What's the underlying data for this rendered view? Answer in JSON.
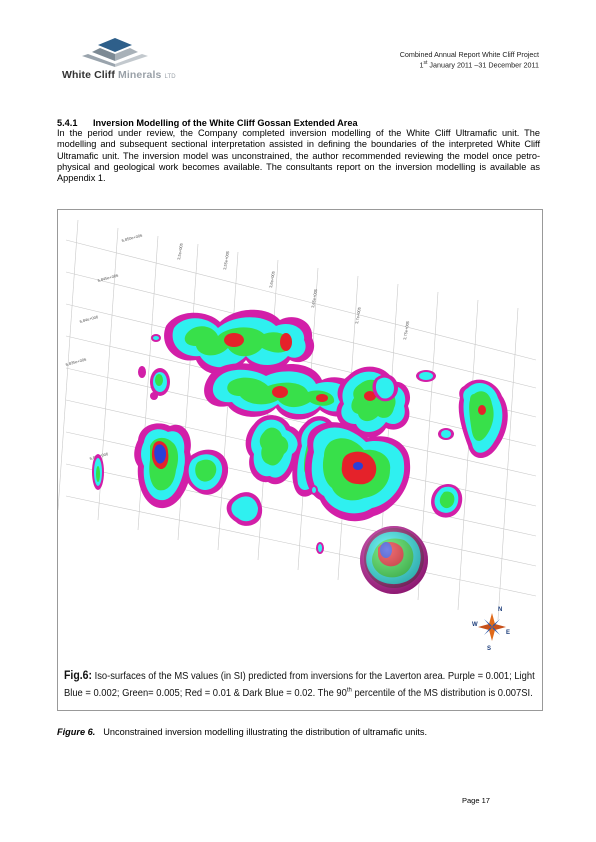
{
  "header": {
    "logo": {
      "name": "White Cliff",
      "name2": "Minerals",
      "suffix": "LTD",
      "icon": "white-cliff-logo-icon"
    },
    "project": "Combined Annual Report White Cliff Project",
    "period_pre": "1",
    "period_sup": "st",
    "period_post": " January 2011 –31 December 2011"
  },
  "section": {
    "number": "5.4.1",
    "title": "Inversion Modelling of the White Cliff Gossan Extended Area",
    "body": "In the period under review, the Company completed inversion modelling of the White Cliff Ultramafic unit. The modelling and subsequent sectional interpretation assisted in defining the boundaries of the interpreted White Cliff Ultramafic unit. The inversion model was unconstrained, the author recommended reviewing the model once petro-physical and geological work becomes available. The consultants report on the inversion modelling is available as Appendix 1."
  },
  "figure": {
    "colors": {
      "purple": "#d21fa8",
      "light_blue": "#2ff0f0",
      "green": "#38e04a",
      "red": "#e5222a",
      "dark_blue": "#2a3fd8"
    },
    "grid_labels": [
      "6,850e+006",
      "6,845e+006",
      "6,84e+006",
      "6,835e+006",
      "6,83e+006",
      "3,5e+005",
      "3,55e+005",
      "3,6e+005",
      "3,65e+005",
      "3,7e+005",
      "3,75e+005"
    ],
    "compass": {
      "n": "N",
      "s": "S",
      "e": "E",
      "w": "W"
    },
    "inner_caption": {
      "label": "Fig.6:",
      "text1": " Iso-surfaces of the MS values (in SI) predicted from inversions for the Laverton area.  Purple = 0.001; Light Blue = 0.002; Green= 0.005; Red = 0.01 & Dark Blue = 0.02.  The 90",
      "sup": "th",
      "text2": " percentile of the MS distribution is 0.007SI."
    }
  },
  "caption": {
    "label": "Figure 6.",
    "text": "Unconstrained inversion modelling illustrating the distribution of ultramafic units."
  },
  "page": {
    "number": "Page 17"
  }
}
